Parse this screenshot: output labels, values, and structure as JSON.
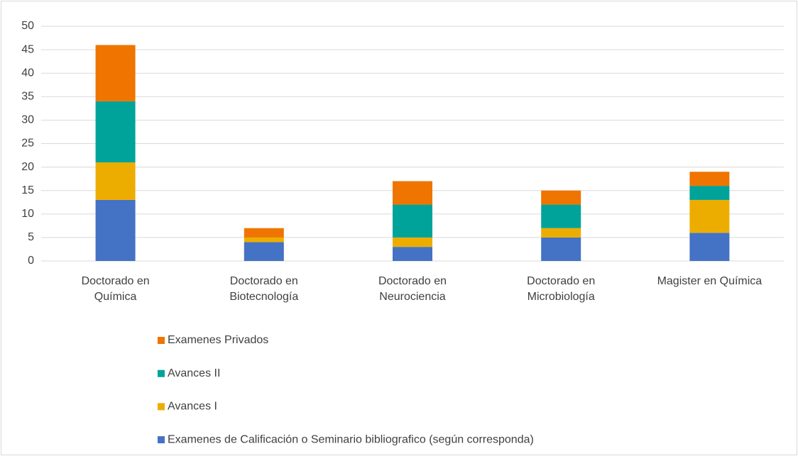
{
  "chart_data": {
    "type": "stacked_bar",
    "categories": [
      "Doctorado en\nQuímica",
      "Doctorado en\nBiotecnología",
      "Doctorado en\nNeurociencia",
      "Doctorado en\nMicrobiología",
      "Magister en Química"
    ],
    "series": [
      {
        "name": "Examenes de Calificación o Seminario bibliografico (según corresponda)",
        "color": "#4472c4",
        "values": [
          13,
          4,
          3,
          5,
          6
        ]
      },
      {
        "name": "Avances I",
        "color": "#edad00",
        "values": [
          8,
          1,
          2,
          2,
          7
        ]
      },
      {
        "name": "Avances II",
        "color": "#00a39a",
        "values": [
          13,
          0,
          7,
          5,
          3
        ]
      },
      {
        "name": "Examenes Privados",
        "color": "#ef7400",
        "values": [
          12,
          2,
          5,
          3,
          3
        ]
      }
    ],
    "ylim": [
      0,
      50
    ],
    "yticks": [
      0,
      5,
      10,
      15,
      20,
      25,
      30,
      35,
      40,
      45,
      50
    ],
    "grid": true,
    "legend": "bottom"
  }
}
